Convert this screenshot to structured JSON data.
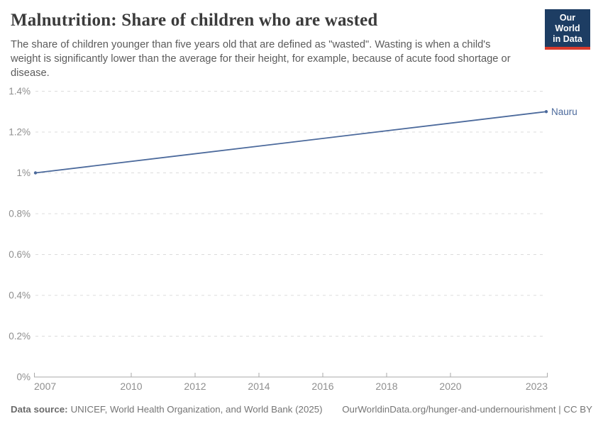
{
  "header": {
    "title": "Malnutrition: Share of children who are wasted",
    "subtitle": "The share of children younger than five years old that are defined as \"wasted\". Wasting is when a child's weight is significantly lower than the average for their height, for example, because of acute food shortage or disease.",
    "logo": {
      "line1": "Our World",
      "line2": "in Data"
    }
  },
  "footer": {
    "source_label": "Data source:",
    "source_text": "UNICEF, World Health Organization, and World Bank (2025)",
    "credit": "OurWorldinData.org/hunger-and-undernourishment | CC BY"
  },
  "colors": {
    "series_blue": "#4C6A9C",
    "logo_background": "#1d3d63",
    "logo_red": "#d93a2b",
    "gridline": "#dcdcdc",
    "axis": "#a8a8a8",
    "tick_text": "#8f8f8f"
  },
  "chart_data": {
    "type": "line",
    "title": "Malnutrition: Share of children who are wasted",
    "xlabel": "",
    "ylabel": "",
    "unit": "%",
    "grid": "horizontal-dashed",
    "legend_position": "end-of-line-label",
    "x_range": [
      2007,
      2023
    ],
    "x_ticks": [
      2007,
      2010,
      2012,
      2014,
      2016,
      2018,
      2020,
      2023
    ],
    "y_range": [
      0,
      1.4
    ],
    "y_ticks": [
      {
        "value": 0,
        "label": "0%"
      },
      {
        "value": 0.2,
        "label": "0.2%"
      },
      {
        "value": 0.4,
        "label": "0.4%"
      },
      {
        "value": 0.6,
        "label": "0.6%"
      },
      {
        "value": 0.8,
        "label": "0.8%"
      },
      {
        "value": 1.0,
        "label": "1%"
      },
      {
        "value": 1.2,
        "label": "1.2%"
      },
      {
        "value": 1.4,
        "label": "1.4%"
      }
    ],
    "series": [
      {
        "name": "Nauru",
        "color": "#4C6A9C",
        "points": [
          {
            "x": 2007,
            "y": 1.0
          },
          {
            "x": 2023,
            "y": 1.3
          }
        ]
      }
    ]
  }
}
